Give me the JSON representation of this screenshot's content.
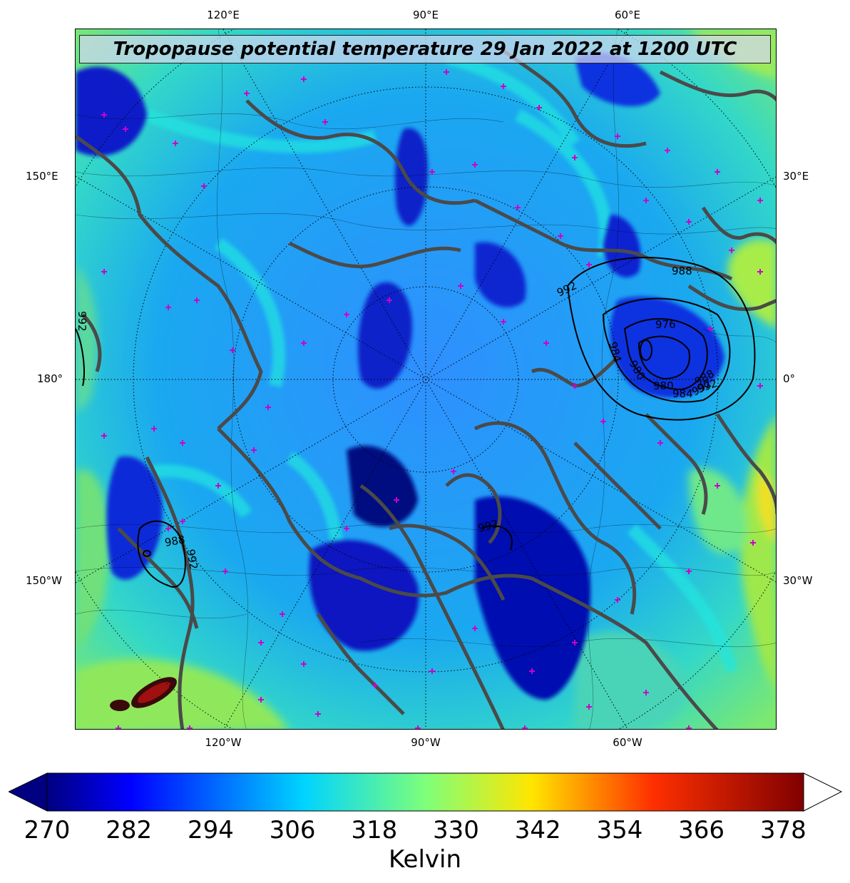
{
  "title": "Tropopause potential temperature 29 Jan 2022 at 1200 UTC",
  "longitude_labels_top": [
    "120°E",
    "90°E",
    "60°E"
  ],
  "longitude_labels_bottom": [
    "120°W",
    "90°W",
    "60°W"
  ],
  "latitude_labels_left": [
    "150°E",
    "180°",
    "150°W"
  ],
  "latitude_labels_right": [
    "30°E",
    "0°",
    "30°W"
  ],
  "pressure_contour_labels": [
    "992",
    "988",
    "984",
    "980",
    "976",
    "980",
    "984",
    "988",
    "992",
    "992",
    "988",
    "992",
    "992",
    "992"
  ],
  "colorbar": {
    "label": "Kelvin",
    "ticks": [
      "270",
      "282",
      "294",
      "306",
      "318",
      "330",
      "342",
      "354",
      "366",
      "378"
    ],
    "min": 270,
    "max": 381,
    "extend": "both",
    "colormap": "jet"
  },
  "colors": {
    "coastline": "#444444",
    "pressure_contours": "#000000",
    "station_markers": "#cc00cc",
    "title_box": "#d2d7f0"
  }
}
